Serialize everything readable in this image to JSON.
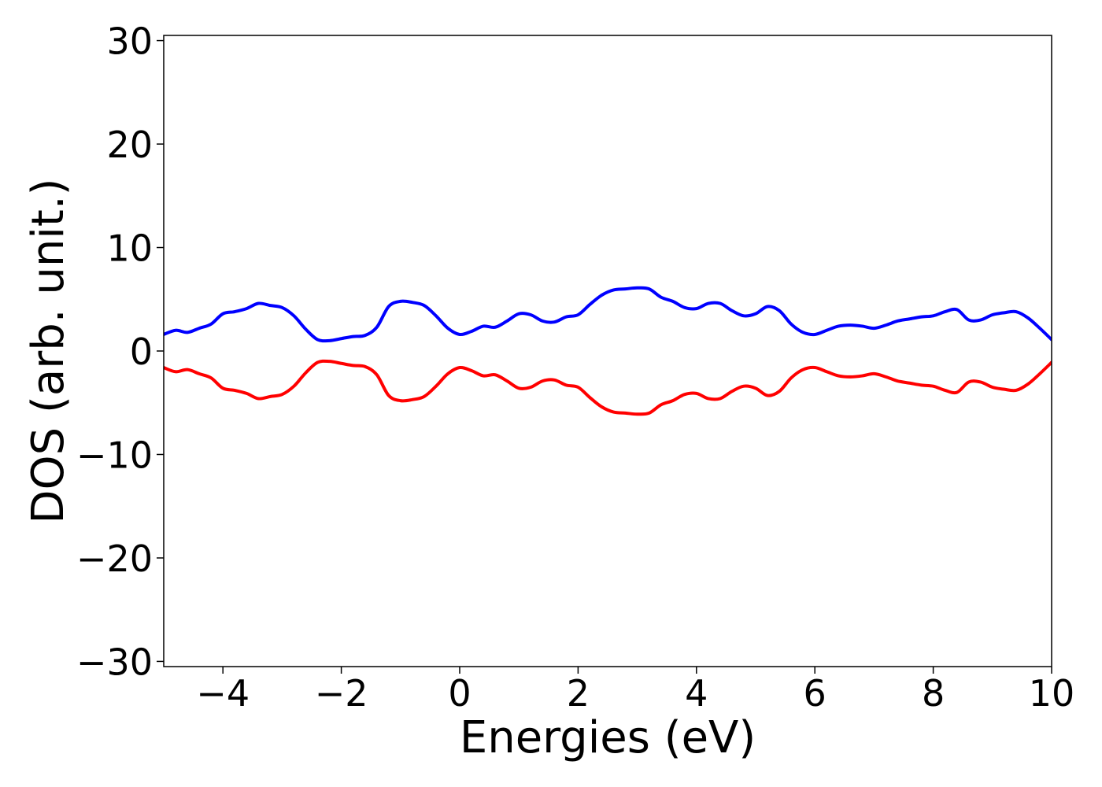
{
  "chart_data": {
    "type": "line",
    "title": "",
    "xlabel": "Energies (eV)",
    "ylabel": "DOS (arb. unit.)",
    "xlim": [
      -5,
      10
    ],
    "ylim": [
      -30.5,
      30.5
    ],
    "grid": false,
    "legend": "none",
    "x_ticks": [
      {
        "value": -4,
        "label": "−4"
      },
      {
        "value": -2,
        "label": "−2"
      },
      {
        "value": 0,
        "label": "0"
      },
      {
        "value": 2,
        "label": "2"
      },
      {
        "value": 4,
        "label": "4"
      },
      {
        "value": 6,
        "label": "6"
      },
      {
        "value": 8,
        "label": "8"
      },
      {
        "value": 10,
        "label": "10"
      }
    ],
    "y_ticks": [
      {
        "value": 30,
        "label": "30"
      },
      {
        "value": 20,
        "label": "20"
      },
      {
        "value": 10,
        "label": "10"
      },
      {
        "value": 0,
        "label": "0"
      },
      {
        "value": -10,
        "label": "−10"
      },
      {
        "value": -20,
        "label": "−20"
      },
      {
        "value": -30,
        "label": "−30"
      }
    ],
    "x": [
      -5.0,
      -4.8,
      -4.6,
      -4.4,
      -4.2,
      -4.0,
      -3.8,
      -3.6,
      -3.4,
      -3.2,
      -3.0,
      -2.8,
      -2.6,
      -2.4,
      -2.2,
      -2.0,
      -1.8,
      -1.6,
      -1.4,
      -1.2,
      -1.0,
      -0.8,
      -0.6,
      -0.4,
      -0.2,
      0.0,
      0.2,
      0.4,
      0.6,
      0.8,
      1.0,
      1.2,
      1.4,
      1.6,
      1.8,
      2.0,
      2.2,
      2.4,
      2.6,
      2.8,
      3.0,
      3.2,
      3.4,
      3.6,
      3.8,
      4.0,
      4.2,
      4.4,
      4.6,
      4.8,
      5.0,
      5.2,
      5.4,
      5.6,
      5.8,
      6.0,
      6.2,
      6.4,
      6.6,
      6.8,
      7.0,
      7.2,
      7.4,
      7.6,
      7.8,
      8.0,
      8.2,
      8.4,
      8.6,
      8.8,
      9.0,
      9.2,
      9.4,
      9.6,
      9.8,
      10.0
    ],
    "series": [
      {
        "color": "#0000ff",
        "values": [
          1.6,
          2.0,
          1.8,
          2.2,
          2.6,
          3.6,
          3.8,
          4.1,
          4.6,
          4.4,
          4.2,
          3.4,
          2.1,
          1.1,
          1.0,
          1.2,
          1.4,
          1.5,
          2.3,
          4.3,
          4.8,
          4.7,
          4.4,
          3.4,
          2.2,
          1.6,
          1.9,
          2.4,
          2.3,
          2.9,
          3.6,
          3.5,
          2.9,
          2.8,
          3.3,
          3.5,
          4.5,
          5.4,
          5.9,
          6.0,
          6.1,
          6.0,
          5.2,
          4.8,
          4.2,
          4.1,
          4.6,
          4.6,
          3.9,
          3.4,
          3.6,
          4.3,
          3.9,
          2.6,
          1.8,
          1.6,
          2.0,
          2.4,
          2.5,
          2.4,
          2.2,
          2.5,
          2.9,
          3.1,
          3.3,
          3.4,
          3.8,
          4.0,
          3.0,
          3.0,
          3.5,
          3.7,
          3.8,
          3.2,
          2.2,
          1.1
        ]
      },
      {
        "color": "#ff0000",
        "values": [
          -1.6,
          -2.0,
          -1.8,
          -2.2,
          -2.6,
          -3.6,
          -3.8,
          -4.1,
          -4.6,
          -4.4,
          -4.2,
          -3.4,
          -2.1,
          -1.1,
          -1.0,
          -1.2,
          -1.4,
          -1.5,
          -2.3,
          -4.3,
          -4.8,
          -4.7,
          -4.4,
          -3.4,
          -2.2,
          -1.6,
          -1.9,
          -2.4,
          -2.3,
          -2.9,
          -3.6,
          -3.5,
          -2.9,
          -2.8,
          -3.3,
          -3.5,
          -4.5,
          -5.4,
          -5.9,
          -6.0,
          -6.1,
          -6.0,
          -5.2,
          -4.8,
          -4.2,
          -4.1,
          -4.6,
          -4.6,
          -3.9,
          -3.4,
          -3.6,
          -4.3,
          -3.9,
          -2.6,
          -1.8,
          -1.6,
          -2.0,
          -2.4,
          -2.5,
          -2.4,
          -2.2,
          -2.5,
          -2.9,
          -3.1,
          -3.3,
          -3.4,
          -3.8,
          -4.0,
          -3.0,
          -3.0,
          -3.5,
          -3.7,
          -3.8,
          -3.2,
          -2.2,
          -1.1
        ]
      }
    ]
  }
}
